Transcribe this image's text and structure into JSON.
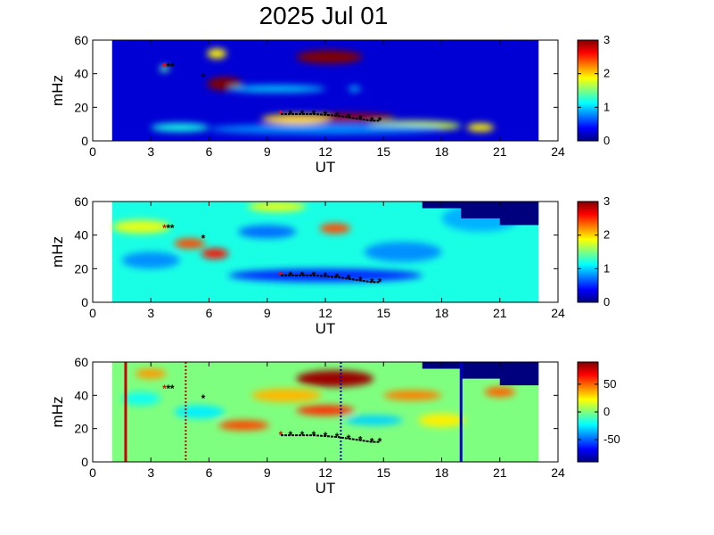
{
  "title": "2025 Jul 01",
  "colors": {
    "jet_stops": [
      "#00007f",
      "#0000ff",
      "#007fff",
      "#00ffff",
      "#7fff7f",
      "#ffff00",
      "#ff7f00",
      "#ff0000",
      "#7f0000"
    ],
    "marker": "#000000",
    "marker_start": "#ff0000",
    "line_red": "#cc0000",
    "line_blue": "#0000cc"
  },
  "chart_data": [
    {
      "type": "heatmap",
      "xlabel": "UT",
      "ylabel": "mHz",
      "xlim": [
        0,
        24
      ],
      "ylim": [
        0,
        60
      ],
      "xticks": [
        0,
        3,
        6,
        9,
        12,
        15,
        18,
        21,
        24
      ],
      "yticks": [
        0,
        20,
        40,
        60
      ],
      "data_range_ut": [
        1,
        23
      ],
      "clim": [
        0,
        3
      ],
      "colorbar_ticks": [
        0,
        1,
        2,
        3
      ],
      "background_level": 0.25,
      "features": [
        {
          "ut": 6.8,
          "mhz": 34,
          "ut_width": 0.9,
          "mhz_width": 4,
          "level": 3.0
        },
        {
          "ut": 12.2,
          "mhz": 50,
          "ut_width": 1.7,
          "mhz_width": 4,
          "level": 3.0
        },
        {
          "ut": 6.4,
          "mhz": 52,
          "ut_width": 0.5,
          "mhz_width": 3,
          "level": 1.9
        },
        {
          "ut": 3.7,
          "mhz": 43,
          "ut_width": 0.25,
          "mhz_width": 2,
          "level": 1.4
        },
        {
          "ut": 9.5,
          "mhz": 31,
          "ut_width": 2.5,
          "mhz_width": 2,
          "level": 1.0
        },
        {
          "ut": 13,
          "mhz": 14,
          "ut_width": 2.6,
          "mhz_width": 2.5,
          "level": 2.9
        },
        {
          "ut": 10.5,
          "mhz": 13,
          "ut_width": 1.8,
          "mhz_width": 3,
          "level": 2.0
        },
        {
          "ut": 16.5,
          "mhz": 9,
          "ut_width": 2.5,
          "mhz_width": 3,
          "level": 1.7
        },
        {
          "ut": 20,
          "mhz": 8,
          "ut_width": 0.7,
          "mhz_width": 2.5,
          "level": 1.9
        },
        {
          "ut": 4.5,
          "mhz": 8,
          "ut_width": 1.5,
          "mhz_width": 2.5,
          "level": 1.2
        },
        {
          "ut": 12,
          "mhz": 7,
          "ut_width": 6,
          "mhz_width": 3,
          "level": 0.8
        },
        {
          "ut": 13.5,
          "mhz": 31,
          "ut_width": 0.3,
          "mhz_width": 1.5,
          "level": 1.0
        }
      ]
    },
    {
      "type": "heatmap",
      "xlabel": "UT",
      "ylabel": "mHz",
      "xlim": [
        0,
        24
      ],
      "ylim": [
        0,
        60
      ],
      "xticks": [
        0,
        3,
        6,
        9,
        12,
        15,
        18,
        21,
        24
      ],
      "yticks": [
        0,
        20,
        40,
        60
      ],
      "data_range_ut": [
        1,
        23
      ],
      "clim": [
        0,
        3
      ],
      "colorbar_ticks": [
        0,
        1,
        2,
        3
      ],
      "background_level": 1.2,
      "features": [
        {
          "ut": 5.0,
          "mhz": 35,
          "ut_width": 0.8,
          "mhz_width": 3,
          "level": 2.4
        },
        {
          "ut": 6.3,
          "mhz": 29,
          "ut_width": 0.7,
          "mhz_width": 3,
          "level": 2.6
        },
        {
          "ut": 12.5,
          "mhz": 44,
          "ut_width": 0.8,
          "mhz_width": 3,
          "level": 2.4
        },
        {
          "ut": 12,
          "mhz": 16,
          "ut_width": 5,
          "mhz_width": 4,
          "level": 0.5
        },
        {
          "ut": 9,
          "mhz": 42,
          "ut_width": 1.5,
          "mhz_width": 4,
          "level": 0.7
        },
        {
          "ut": 16,
          "mhz": 30,
          "ut_width": 2,
          "mhz_width": 6,
          "level": 0.8
        },
        {
          "ut": 3,
          "mhz": 25,
          "ut_width": 1.5,
          "mhz_width": 5,
          "level": 0.8
        },
        {
          "ut": 20,
          "mhz": 50,
          "ut_width": 2,
          "mhz_width": 8,
          "level": 0.9
        },
        {
          "ut": 2.5,
          "mhz": 45,
          "ut_width": 1.5,
          "mhz_width": 4,
          "level": 1.8
        },
        {
          "ut": 9.5,
          "mhz": 57,
          "ut_width": 1.5,
          "mhz_width": 3,
          "level": 1.8
        }
      ],
      "masked_region": [
        [
          13.5,
          60
        ],
        [
          17,
          60
        ],
        [
          17,
          56
        ],
        [
          19,
          56
        ],
        [
          19,
          50
        ],
        [
          21,
          50
        ],
        [
          21,
          46
        ],
        [
          23,
          46
        ],
        [
          23,
          60
        ]
      ]
    },
    {
      "type": "heatmap",
      "xlabel": "UT",
      "ylabel": "mHz",
      "xlim": [
        0,
        24
      ],
      "ylim": [
        0,
        60
      ],
      "xticks": [
        0,
        3,
        6,
        9,
        12,
        15,
        18,
        21,
        24
      ],
      "yticks": [
        0,
        20,
        40,
        60
      ],
      "data_range_ut": [
        1,
        23
      ],
      "clim": [
        -90,
        90
      ],
      "colorbar_ticks": [
        50,
        0,
        -50
      ],
      "background_level": 0,
      "features": [
        {
          "ut": 12.5,
          "mhz": 50,
          "ut_width": 2,
          "mhz_width": 5,
          "level": 85
        },
        {
          "ut": 7.8,
          "mhz": 22,
          "ut_width": 1.3,
          "mhz_width": 3,
          "level": 55
        },
        {
          "ut": 12,
          "mhz": 31,
          "ut_width": 1.5,
          "mhz_width": 3,
          "level": 60
        },
        {
          "ut": 10,
          "mhz": 40,
          "ut_width": 1.8,
          "mhz_width": 4,
          "level": 35
        },
        {
          "ut": 3.0,
          "mhz": 53,
          "ut_width": 0.8,
          "mhz_width": 3,
          "level": 40
        },
        {
          "ut": 16.5,
          "mhz": 40,
          "ut_width": 1.5,
          "mhz_width": 3,
          "level": 45
        },
        {
          "ut": 21,
          "mhz": 42,
          "ut_width": 0.8,
          "mhz_width": 3,
          "level": 50
        },
        {
          "ut": 5.5,
          "mhz": 30,
          "ut_width": 1.3,
          "mhz_width": 4,
          "level": -25
        },
        {
          "ut": 14.5,
          "mhz": 25,
          "ut_width": 1.5,
          "mhz_width": 3,
          "level": -30
        },
        {
          "ut": 2.5,
          "mhz": 38,
          "ut_width": 1,
          "mhz_width": 4,
          "level": -20
        },
        {
          "ut": 18,
          "mhz": 25,
          "ut_width": 1.2,
          "mhz_width": 4,
          "level": 25
        }
      ],
      "masked_region": [
        [
          13.5,
          60
        ],
        [
          17,
          60
        ],
        [
          17,
          56
        ],
        [
          19,
          56
        ],
        [
          19,
          50
        ],
        [
          21,
          50
        ],
        [
          21,
          46
        ],
        [
          23,
          46
        ],
        [
          23,
          60
        ]
      ],
      "vertical_lines": [
        {
          "ut": 1.7,
          "style": "solid",
          "color": "red"
        },
        {
          "ut": 4.8,
          "style": "dotted",
          "color": "red"
        },
        {
          "ut": 12.8,
          "style": "dotted",
          "color": "blue"
        },
        {
          "ut": 19.0,
          "style": "solid",
          "color": "blue"
        }
      ]
    }
  ],
  "markers": {
    "isolated": [
      {
        "ut": 3.7,
        "mhz": 44
      },
      {
        "ut": 3.9,
        "mhz": 44
      },
      {
        "ut": 4.1,
        "mhz": 44
      },
      {
        "ut": 5.7,
        "mhz": 38
      }
    ],
    "track": [
      {
        "ut": 9.7,
        "mhz": 16
      },
      {
        "ut": 10.2,
        "mhz": 16
      },
      {
        "ut": 10.8,
        "mhz": 16
      },
      {
        "ut": 11.4,
        "mhz": 16
      },
      {
        "ut": 12.0,
        "mhz": 15.5
      },
      {
        "ut": 12.6,
        "mhz": 15
      },
      {
        "ut": 13.2,
        "mhz": 14
      },
      {
        "ut": 13.8,
        "mhz": 13
      },
      {
        "ut": 14.4,
        "mhz": 12
      },
      {
        "ut": 14.8,
        "mhz": 12
      }
    ]
  }
}
